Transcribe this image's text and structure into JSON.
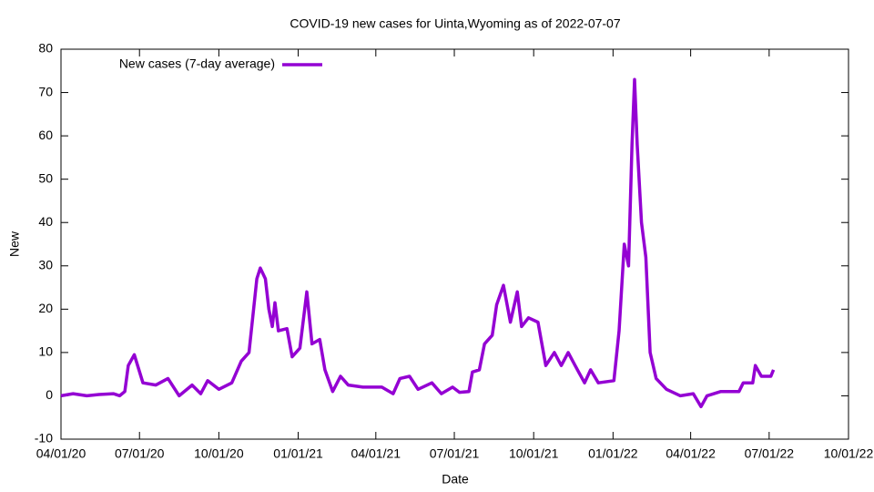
{
  "chart_data": {
    "type": "line",
    "title": "COVID-19 new cases for Uinta,Wyoming as of 2022-07-07",
    "x_label": "Date",
    "y_label": "New",
    "legend": "top-left",
    "x": [
      "2020-04-01",
      "2020-04-15",
      "2020-05-01",
      "2020-05-15",
      "2020-06-01",
      "2020-06-08",
      "2020-06-14",
      "2020-06-18",
      "2020-06-25",
      "2020-07-05",
      "2020-07-20",
      "2020-08-03",
      "2020-08-16",
      "2020-08-31",
      "2020-09-10",
      "2020-09-18",
      "2020-10-01",
      "2020-10-16",
      "2020-10-27",
      "2020-11-05",
      "2020-11-14",
      "2020-11-18",
      "2020-11-24",
      "2020-11-28",
      "2020-12-02",
      "2020-12-05",
      "2020-12-09",
      "2020-12-19",
      "2020-12-25",
      "2021-01-03",
      "2021-01-11",
      "2021-01-17",
      "2021-01-26",
      "2021-02-01",
      "2021-02-10",
      "2021-02-19",
      "2021-02-28",
      "2021-03-17",
      "2021-04-08",
      "2021-04-21",
      "2021-04-29",
      "2021-05-10",
      "2021-05-20",
      "2021-06-05",
      "2021-06-16",
      "2021-06-29",
      "2021-07-07",
      "2021-07-18",
      "2021-07-22",
      "2021-07-30",
      "2021-08-05",
      "2021-08-14",
      "2021-08-19",
      "2021-08-27",
      "2021-09-04",
      "2021-09-12",
      "2021-09-17",
      "2021-09-25",
      "2021-10-06",
      "2021-10-15",
      "2021-10-25",
      "2021-11-02",
      "2021-11-10",
      "2021-11-18",
      "2021-11-29",
      "2021-12-06",
      "2021-12-15",
      "2022-01-02",
      "2022-01-08",
      "2022-01-14",
      "2022-01-19",
      "2022-01-23",
      "2022-01-26",
      "2022-01-29",
      "2022-02-03",
      "2022-02-08",
      "2022-02-13",
      "2022-02-20",
      "2022-03-04",
      "2022-03-20",
      "2022-04-04",
      "2022-04-13",
      "2022-04-20",
      "2022-05-06",
      "2022-05-27",
      "2022-06-01",
      "2022-06-12",
      "2022-06-15",
      "2022-06-22",
      "2022-07-03",
      "2022-07-06"
    ],
    "series": [
      {
        "name": "New cases (7-day average)",
        "color": "#9400d3",
        "values": [
          0,
          0.5,
          0,
          0.3,
          0.5,
          0,
          1,
          7,
          9.5,
          3,
          2.5,
          4,
          0,
          2.5,
          0.5,
          3.5,
          1.5,
          3,
          8,
          10,
          27,
          29.5,
          27,
          20,
          16,
          21.5,
          15,
          15.5,
          9,
          11,
          24,
          12,
          13,
          6,
          1,
          4.5,
          2.5,
          2,
          2,
          0.5,
          4,
          4.5,
          1.5,
          3,
          0.5,
          2,
          0.8,
          1,
          5.5,
          6,
          12,
          14,
          21,
          25.5,
          17,
          24,
          16,
          18,
          17,
          7,
          10,
          7,
          10,
          7,
          3,
          6,
          3,
          3.5,
          15,
          35,
          30,
          58,
          73,
          58,
          40,
          32,
          10,
          4,
          1.5,
          0,
          0.5,
          -2.5,
          0,
          1,
          1,
          3,
          3,
          7,
          4.5,
          4.5,
          6
        ]
      }
    ],
    "xlim": [
      "2020-04-01",
      "2022-10-01"
    ],
    "xticks": [
      {
        "value": "2020-04-01",
        "label": "04/01/20"
      },
      {
        "value": "2020-07-01",
        "label": "07/01/20"
      },
      {
        "value": "2020-10-01",
        "label": "10/01/20"
      },
      {
        "value": "2021-01-01",
        "label": "01/01/21"
      },
      {
        "value": "2021-04-01",
        "label": "04/01/21"
      },
      {
        "value": "2021-07-01",
        "label": "07/01/21"
      },
      {
        "value": "2021-10-01",
        "label": "10/01/21"
      },
      {
        "value": "2022-01-01",
        "label": "01/01/22"
      },
      {
        "value": "2022-04-01",
        "label": "04/01/22"
      },
      {
        "value": "2022-07-01",
        "label": "07/01/22"
      },
      {
        "value": "2022-10-01",
        "label": "10/01/22"
      }
    ],
    "ylim": [
      -10,
      80
    ],
    "yticks": [
      -10,
      0,
      10,
      20,
      30,
      40,
      50,
      60,
      70,
      80
    ]
  }
}
